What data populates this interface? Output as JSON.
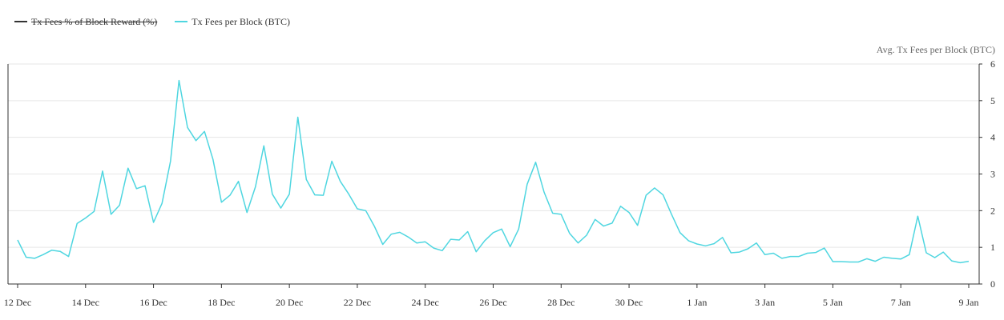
{
  "legend": [
    {
      "label": "Tx Fees % of Block Reward (%)",
      "color": "#333333",
      "hidden": true
    },
    {
      "label": "Tx Fees per Block (BTC)",
      "color": "#4fd6e0",
      "hidden": false
    }
  ],
  "chart_data": {
    "type": "line",
    "y_axis_title": "Avg. Tx Fees per Block (BTC)",
    "ylim": [
      0,
      6
    ],
    "y_ticks": [
      "0",
      "1",
      "2",
      "3",
      "4",
      "5",
      "6"
    ],
    "y_axis_position": "right",
    "grid": true,
    "legend_position": "top-left",
    "x_tick_labels": [
      "12 Dec",
      "14 Dec",
      "16 Dec",
      "18 Dec",
      "20 Dec",
      "22 Dec",
      "24 Dec",
      "26 Dec",
      "28 Dec",
      "30 Dec",
      "1 Jan",
      "3 Jan",
      "5 Jan",
      "7 Jan",
      "9 Jan"
    ],
    "x_start": "12 Dec",
    "x_step": "6 hours",
    "series": [
      {
        "name": "Tx Fees per Block (BTC)",
        "color": "#4fd6e0",
        "values": [
          1.2,
          0.73,
          0.7,
          0.8,
          0.92,
          0.89,
          0.75,
          1.65,
          1.8,
          1.98,
          3.08,
          1.9,
          2.15,
          3.16,
          2.6,
          2.68,
          1.68,
          2.2,
          3.35,
          5.55,
          4.27,
          3.91,
          4.16,
          3.4,
          2.23,
          2.42,
          2.8,
          1.95,
          2.65,
          3.77,
          2.45,
          2.07,
          2.45,
          4.55,
          2.85,
          2.43,
          2.42,
          3.35,
          2.8,
          2.45,
          2.05,
          2.0,
          1.58,
          1.08,
          1.36,
          1.41,
          1.28,
          1.12,
          1.15,
          0.98,
          0.91,
          1.22,
          1.2,
          1.43,
          0.88,
          1.18,
          1.4,
          1.5,
          1.02,
          1.5,
          2.72,
          3.32,
          2.5,
          1.93,
          1.9,
          1.38,
          1.12,
          1.33,
          1.76,
          1.58,
          1.66,
          2.12,
          1.95,
          1.6,
          2.42,
          2.62,
          2.43,
          1.9,
          1.4,
          1.18,
          1.09,
          1.04,
          1.1,
          1.27,
          0.85,
          0.87,
          0.96,
          1.12,
          0.8,
          0.84,
          0.7,
          0.75,
          0.75,
          0.84,
          0.86,
          0.98,
          0.61,
          0.61,
          0.6,
          0.6,
          0.69,
          0.62,
          0.73,
          0.7,
          0.68,
          0.8,
          1.85,
          0.85,
          0.72,
          0.87,
          0.63,
          0.58,
          0.62
        ]
      }
    ]
  }
}
